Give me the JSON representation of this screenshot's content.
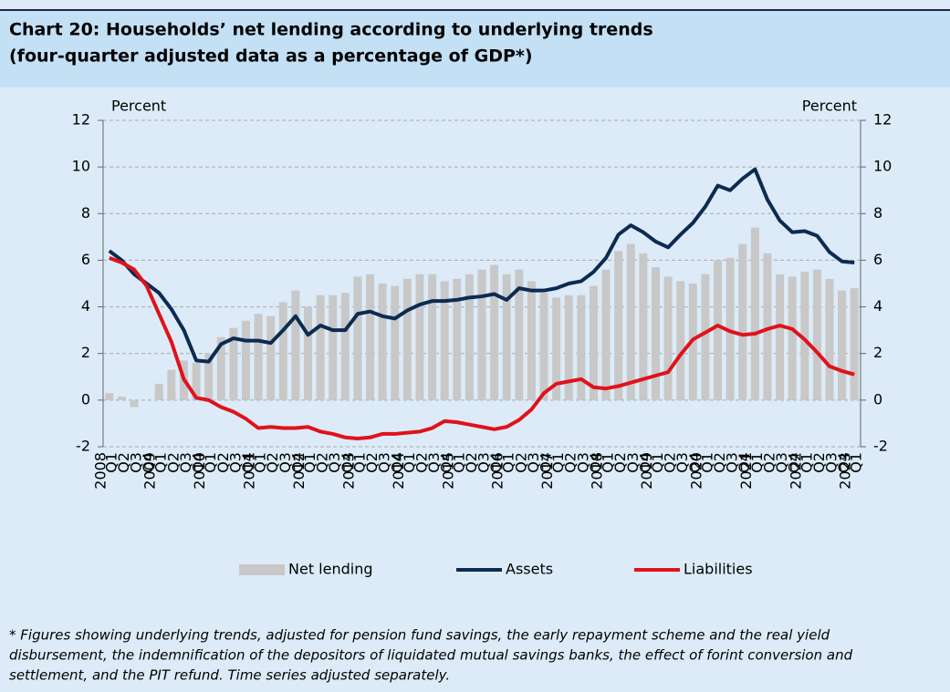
{
  "chart_data": {
    "type": "combo",
    "title": [
      "Chart 20: Households’ net lending according to underlying trends",
      "(four-quarter adjusted data as a percentage of GDP*)"
    ],
    "y_label": "Percent",
    "y2_label": "Percent",
    "years": [
      "2008",
      "2009",
      "2010",
      "2011",
      "2012",
      "2013",
      "2014",
      "2015",
      "2016",
      "2017",
      "2018",
      "2019",
      "2020",
      "2021",
      "2022",
      "2023"
    ],
    "categories": [
      "Q1",
      "Q2",
      "Q3",
      "Q4",
      "Q1",
      "Q2",
      "Q3",
      "Q4",
      "Q1",
      "Q2",
      "Q3",
      "Q4",
      "Q1",
      "Q2",
      "Q3",
      "Q4",
      "Q1",
      "Q2",
      "Q3",
      "Q4",
      "Q1",
      "Q2",
      "Q3",
      "Q4",
      "Q1",
      "Q2",
      "Q3",
      "Q4",
      "Q1",
      "Q2",
      "Q3",
      "Q4",
      "Q1",
      "Q2",
      "Q3",
      "Q4",
      "Q1",
      "Q2",
      "Q3",
      "Q4",
      "Q1",
      "Q2",
      "Q3",
      "Q4",
      "Q1",
      "Q2",
      "Q3",
      "Q4",
      "Q1",
      "Q2",
      "Q3",
      "Q4",
      "Q1",
      "Q2",
      "Q3",
      "Q4",
      "Q1",
      "Q2",
      "Q3",
      "Q4",
      "Q1"
    ],
    "series": [
      {
        "name": "Net lending",
        "kind": "bar",
        "color": "#c8c8c8",
        "values": [
          0.3,
          0.15,
          -0.3,
          0,
          0.7,
          1.3,
          1.7,
          1.6,
          2.0,
          2.7,
          3.1,
          3.4,
          3.7,
          3.6,
          4.2,
          4.7,
          4.0,
          4.5,
          4.5,
          4.6,
          5.3,
          5.4,
          5.0,
          4.9,
          5.2,
          5.4,
          5.4,
          5.1,
          5.2,
          5.4,
          5.6,
          5.8,
          5.4,
          5.6,
          5.1,
          4.6,
          4.4,
          4.5,
          4.5,
          4.9,
          5.6,
          6.4,
          6.7,
          6.3,
          5.7,
          5.3,
          5.1,
          5.0,
          5.4,
          6.0,
          6.1,
          6.7,
          7.4,
          6.3,
          5.4,
          5.3,
          5.5,
          5.6,
          5.2,
          4.7,
          4.8
        ]
      },
      {
        "name": "Assets",
        "kind": "line",
        "color": "#0d2a52",
        "values": [
          6.4,
          6.0,
          5.4,
          5.0,
          4.6,
          3.9,
          3.0,
          1.7,
          1.65,
          2.4,
          2.65,
          2.55,
          2.55,
          2.45,
          3.0,
          3.6,
          2.8,
          3.2,
          3.0,
          3.0,
          3.7,
          3.8,
          3.6,
          3.5,
          3.85,
          4.1,
          4.25,
          4.25,
          4.3,
          4.4,
          4.45,
          4.55,
          4.3,
          4.8,
          4.7,
          4.7,
          4.8,
          5.0,
          5.1,
          5.5,
          6.1,
          7.1,
          7.5,
          7.2,
          6.8,
          6.55,
          7.1,
          7.6,
          8.3,
          9.2,
          9.0,
          9.5,
          9.9,
          8.6,
          7.7,
          7.2,
          7.25,
          7.05,
          6.35,
          5.95,
          5.9
        ]
      },
      {
        "name": "Liabilities",
        "kind": "line",
        "color": "#e0121a",
        "values": [
          6.1,
          5.9,
          5.6,
          4.9,
          3.7,
          2.5,
          0.9,
          0.1,
          0.0,
          -0.3,
          -0.5,
          -0.8,
          -1.2,
          -1.15,
          -1.2,
          -1.2,
          -1.15,
          -1.35,
          -1.45,
          -1.6,
          -1.65,
          -1.6,
          -1.45,
          -1.45,
          -1.4,
          -1.35,
          -1.2,
          -0.9,
          -0.95,
          -1.05,
          -1.15,
          -1.25,
          -1.15,
          -0.85,
          -0.4,
          0.3,
          0.7,
          0.8,
          0.9,
          0.55,
          0.5,
          0.6,
          0.75,
          0.9,
          1.05,
          1.2,
          1.95,
          2.6,
          2.9,
          3.2,
          2.95,
          2.8,
          2.85,
          3.05,
          3.2,
          3.05,
          2.6,
          2.05,
          1.45,
          1.25,
          1.1
        ]
      }
    ],
    "ylim": [
      -2,
      12
    ],
    "yticks": [
      -2,
      0,
      2,
      4,
      6,
      8,
      10,
      12
    ],
    "y2lim": [
      -2,
      12
    ],
    "y2ticks": [
      -2,
      0,
      2,
      4,
      6,
      8,
      10,
      12
    ],
    "grid": true,
    "legend": "bottom",
    "footnote": [
      "* Figures showing underlying trends, adjusted for pension fund savings, the early repayment scheme and the real yield",
      "disbursement, the indemnification of the depositors of liquidated mutual savings banks, the effect of forint conversion and",
      "settlement, and the PIT refund. Time series adjusted separately."
    ]
  }
}
